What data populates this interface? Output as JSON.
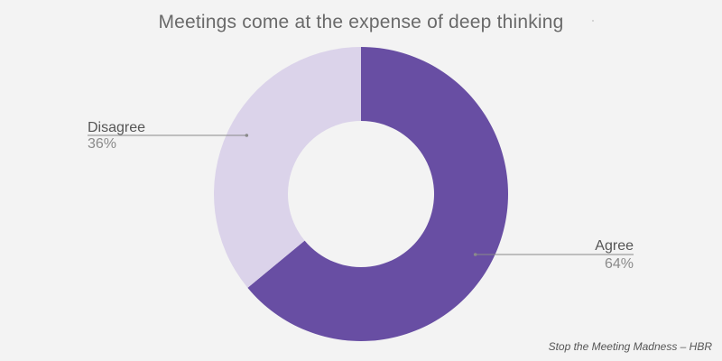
{
  "chart_data": {
    "type": "pie",
    "variant": "donut",
    "title": "Meetings come at the expense of deep thinking",
    "categories": [
      "Agree",
      "Disagree"
    ],
    "values": [
      64,
      36
    ],
    "value_labels": [
      "64%",
      "36%"
    ],
    "colors": [
      "#684ea3",
      "#dbd3ea"
    ],
    "start_angle_deg": 0,
    "direction": "clockwise",
    "legend": "none",
    "label_color": "#555555",
    "value_label_color": "#8a8a8a",
    "leader_color": "#8a8a8a"
  },
  "footer": {
    "source": "Stop the Meeting Madness – HBR"
  }
}
